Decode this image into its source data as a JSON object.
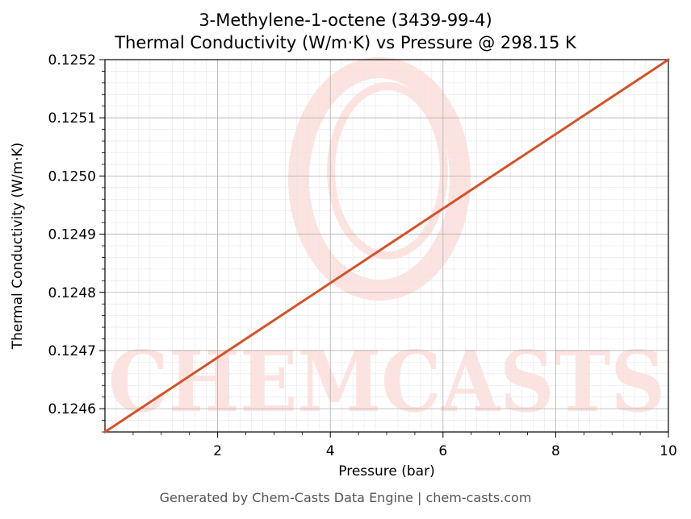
{
  "chart_data": {
    "type": "line",
    "title_line1": "3-Methylene-1-octene (3439-99-4)",
    "title_line2": "Thermal Conductivity (W/m·K) vs Pressure @ 298.15 K",
    "xlabel": "Pressure (bar)",
    "ylabel": "Thermal Conductivity (W/m·K)",
    "xlim": [
      0,
      10
    ],
    "ylim": [
      0.12456,
      0.1252
    ],
    "xticks": [
      2,
      4,
      6,
      8,
      10
    ],
    "xtick_labels": [
      "2",
      "4",
      "6",
      "8",
      "10"
    ],
    "yticks": [
      0.1246,
      0.1247,
      0.1248,
      0.1249,
      0.125,
      0.1251,
      0.1252
    ],
    "ytick_labels": [
      "0.1246",
      "0.1247",
      "0.1248",
      "0.1249",
      "0.1250",
      "0.1251",
      "0.1252"
    ],
    "grid": true,
    "series": [
      {
        "color": "#d4522a",
        "x": [
          0,
          10
        ],
        "y": [
          0.12456,
          0.1252
        ]
      }
    ],
    "watermark": "CHEMCASTS",
    "watermark_color": "#fde3e0"
  },
  "footer": "Generated by Chem-Casts Data Engine | chem-casts.com"
}
